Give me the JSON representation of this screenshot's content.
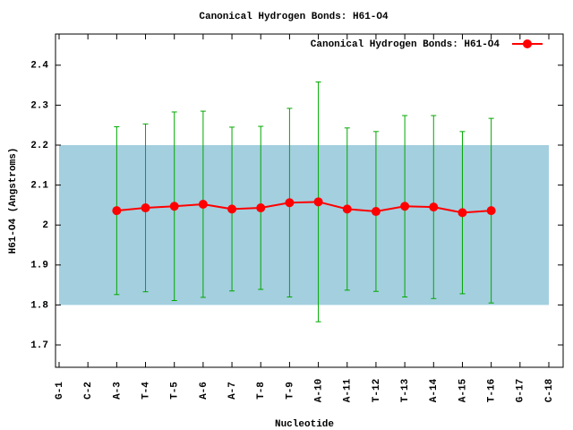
{
  "chart_data": {
    "type": "errorline",
    "title": "Canonical Hydrogen Bonds: H61-O4",
    "xlabel": "Nucleotide",
    "ylabel": "H61-O4 (Angstroms)",
    "categories": [
      "G-1",
      "C-2",
      "A-3",
      "T-4",
      "T-5",
      "A-6",
      "A-7",
      "T-8",
      "T-9",
      "A-10",
      "A-11",
      "T-12",
      "T-13",
      "A-14",
      "A-15",
      "T-16",
      "G-17",
      "C-18"
    ],
    "series": [
      {
        "name": "Canonical Hydrogen Bonds: H61-O4",
        "color": "#ff0000",
        "error_color": "#00a800",
        "values": [
          null,
          null,
          2.036,
          2.043,
          2.047,
          2.052,
          2.04,
          2.043,
          2.056,
          2.058,
          2.04,
          2.034,
          2.047,
          2.045,
          2.031,
          2.036,
          null,
          null
        ],
        "errors": [
          null,
          null,
          0.21,
          0.21,
          0.236,
          0.233,
          0.205,
          0.204,
          0.236,
          0.3,
          0.203,
          0.2,
          0.227,
          0.229,
          0.203,
          0.231,
          null,
          null
        ]
      }
    ],
    "band": {
      "from": 1.8,
      "to": 2.2,
      "color": "#a4cfdf"
    },
    "ylim": [
      1.644,
      2.478
    ],
    "yticks": [
      1.7,
      1.8,
      1.9,
      2,
      2.1,
      2.2,
      2.3,
      2.4
    ],
    "legend": "top-right"
  }
}
